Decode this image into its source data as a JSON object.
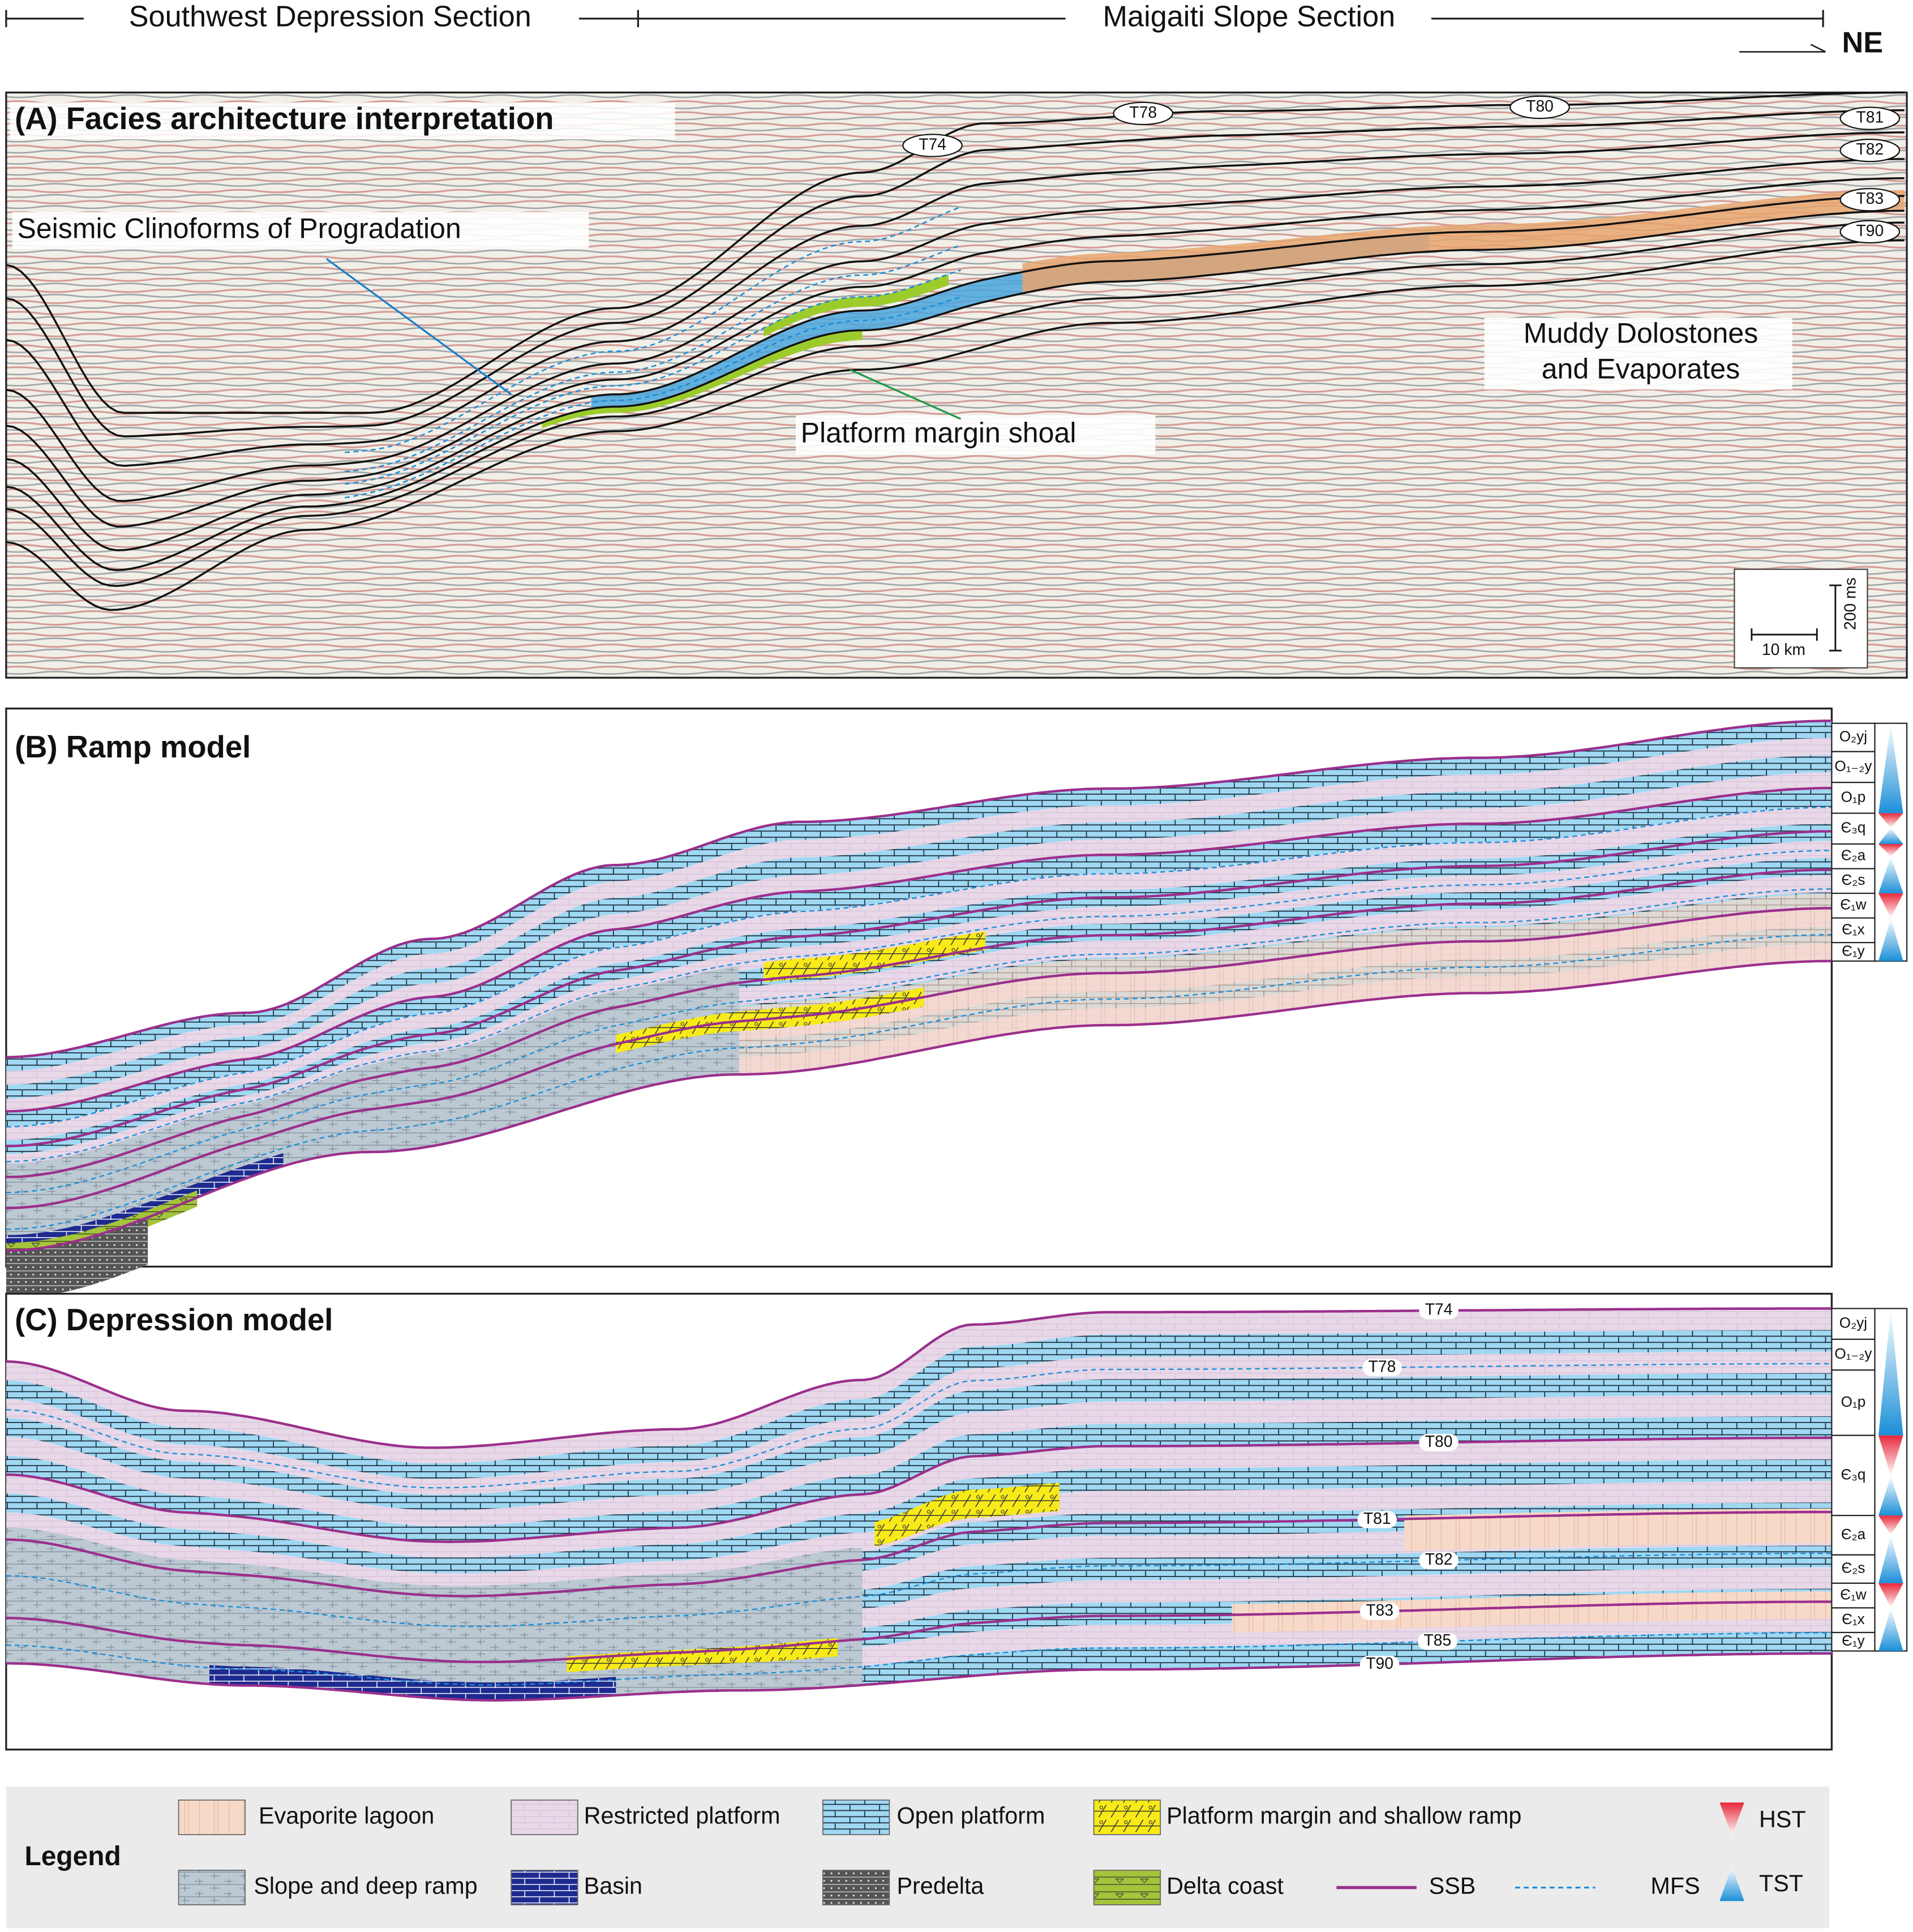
{
  "header": {
    "left_section": "Southwest Depression Section",
    "right_section": "Maigaiti Slope Section",
    "direction": "NE"
  },
  "panel_a": {
    "title": "(A) Facies architecture interpretation",
    "horizons": [
      "T74",
      "T78",
      "T80",
      "T81",
      "T82",
      "T83",
      "T90"
    ],
    "annotations": {
      "clinoforms": "Seismic Clinoforms of Progradation",
      "shoal": "Platform margin shoal",
      "evaporites": [
        "Muddy Dolostones",
        "and Evaporates"
      ]
    },
    "scale_bar": {
      "horizontal": "10 km",
      "vertical": "200 ms"
    }
  },
  "panel_b": {
    "title": "(B) Ramp model",
    "formations": [
      "O₂yj",
      "O₁₋₂y",
      "O₁p",
      "Є₃q",
      "Є₂a",
      "Є₂s",
      "Є₁w",
      "Є₁x",
      "Є₁y"
    ]
  },
  "panel_c": {
    "title": "(C) Depression model",
    "horizons": [
      "T74",
      "T78",
      "T80",
      "T81",
      "T82",
      "T83",
      "T85",
      "T90"
    ],
    "formations": [
      "O₂yj",
      "O₁₋₂y",
      "O₁p",
      "Є₃q",
      "Є₂a",
      "Є₂s",
      "Є₁w",
      "Є₁x",
      "Є₁y"
    ]
  },
  "legend": {
    "title": "Legend",
    "facies": [
      "Evaporite lagoon",
      "Restricted platform",
      "Open platform",
      "Platform margin and shallow ramp",
      "Slope and deep ramp",
      "Basin",
      "Predelta",
      "Delta coast"
    ],
    "lines": [
      "SSB",
      "MFS"
    ],
    "systems_tracts": [
      "HST",
      "TST"
    ]
  }
}
